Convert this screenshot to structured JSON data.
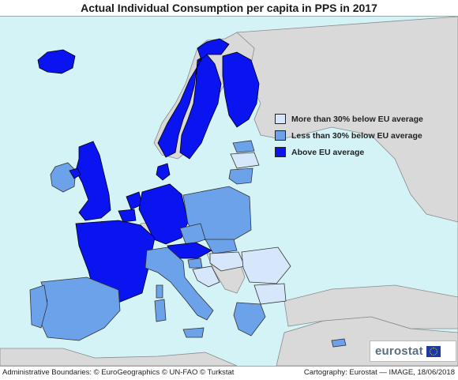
{
  "title": "Actual Individual Consumption per capita in PPS in 2017",
  "legend": [
    {
      "label": "More than 30% below EU average",
      "color": "#d6e7fb"
    },
    {
      "label": "Less than 30% below EU average",
      "color": "#6ca2ea"
    },
    {
      "label": "Above EU average",
      "color": "#0a14f0"
    }
  ],
  "footer": {
    "left": "Administrative Boundaries: © EuroGeographics © UN-FAO © Turkstat",
    "right": "Cartography: Eurostat — IMAGE, 18/06/2018"
  },
  "logo": {
    "text": "eurostat"
  },
  "colors": {
    "sea": "#d4f3f6",
    "non_eu": "#d9d9d9",
    "border": "#333333"
  }
}
